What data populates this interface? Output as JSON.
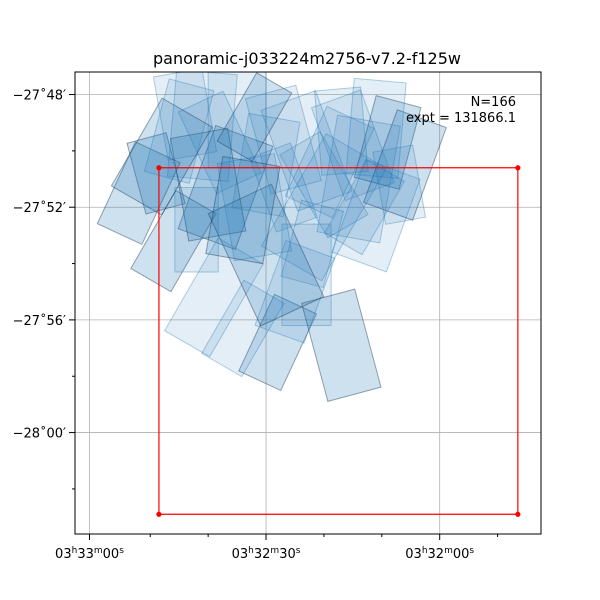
{
  "chart_data": {
    "type": "footprint",
    "title": "panoramic-j033224m2756-v7.2-f125w",
    "annotation_lines": [
      "N=166",
      "expt = 131866.1"
    ],
    "grid": true,
    "x_ticks": [
      {
        "value": -0.5,
        "h": "03",
        "m": "33",
        "s": "00"
      },
      {
        "value": 30,
        "h": "03",
        "m": "32",
        "s": "30"
      },
      {
        "value": 60,
        "h": "03",
        "m": "32",
        "s": "00"
      }
    ],
    "x_minor_ticks": [
      10,
      20,
      40,
      50,
      70
    ],
    "xlim": [
      -3,
      77.5
    ],
    "y_ticks": [
      {
        "value": -48,
        "label": "−27˚48′"
      },
      {
        "value": -52,
        "label": "−27˚52′"
      },
      {
        "value": -56,
        "label": "−27˚56′"
      },
      {
        "value": -60,
        "label": "−28˚00′"
      }
    ],
    "y_minor_ticks": [
      -50,
      -54,
      -58,
      -62
    ],
    "ylim": [
      -63.6,
      -47.2
    ],
    "region_box": {
      "corners": [
        [
          11.5,
          -50.6
        ],
        [
          73.5,
          -50.6
        ],
        [
          73.5,
          -62.9
        ],
        [
          11.5,
          -62.9
        ]
      ],
      "color": "#ff0000"
    },
    "exposure_color": "#1f77b4",
    "exposures": [
      {
        "cx": 23,
        "cy": -51.3,
        "w": 10.5,
        "h": 3.9,
        "rot": 20
      },
      {
        "cx": 33,
        "cy": -49.6,
        "w": 9,
        "h": 3.5,
        "rot": -15
      },
      {
        "cx": 41,
        "cy": -50.4,
        "w": 9,
        "h": 3.5,
        "rot": 25
      },
      {
        "cx": 14,
        "cy": -53.2,
        "w": 8,
        "h": 3.2,
        "rot": 30
      },
      {
        "cx": 19,
        "cy": -49.1,
        "w": 10.5,
        "h": 3.8,
        "rot": 5
      },
      {
        "cx": 45,
        "cy": -49.8,
        "w": 9,
        "h": 3.5,
        "rot": -20
      },
      {
        "cx": 51,
        "cy": -49.7,
        "w": 8,
        "h": 3.0,
        "rot": 15
      },
      {
        "cx": 21,
        "cy": -55.2,
        "w": 9,
        "h": 3.8,
        "rot": 30
      },
      {
        "cx": 28,
        "cy": -52.0,
        "w": 10,
        "h": 3.5,
        "rot": -10
      },
      {
        "cx": 32,
        "cy": -56.8,
        "w": 8,
        "h": 3.0,
        "rot": 25
      },
      {
        "cx": 37,
        "cy": -54.4,
        "w": 8.5,
        "h": 3.6,
        "rot": 0
      },
      {
        "cx": 49,
        "cy": -52.3,
        "w": 10,
        "h": 3.5,
        "rot": 20
      },
      {
        "cx": 11,
        "cy": -50.8,
        "w": 7,
        "h": 2.6,
        "rot": -15
      },
      {
        "cx": 25,
        "cy": -48.9,
        "w": 10,
        "h": 3.4,
        "rot": 0
      },
      {
        "cx": 16,
        "cy": -48.7,
        "w": 8.5,
        "h": 3.0,
        "rot": -10
      },
      {
        "cx": 43,
        "cy": -56.9,
        "w": 9.5,
        "h": 3.6,
        "rot": -15
      },
      {
        "cx": 40,
        "cy": -52.0,
        "w": 12,
        "h": 4.6,
        "rot": 30
      },
      {
        "cx": 26,
        "cy": -56.3,
        "w": 8,
        "h": 3.0,
        "rot": 30
      },
      {
        "cx": 54,
        "cy": -50.5,
        "w": 9,
        "h": 3.5,
        "rot": 20
      },
      {
        "cx": 37,
        "cy": -50.0,
        "w": 10,
        "h": 3.8,
        "rot": -20
      },
      {
        "cx": 30,
        "cy": -50.5,
        "w": 9,
        "h": 3.4,
        "rot": 10
      },
      {
        "cx": 20,
        "cy": -51.2,
        "w": 10,
        "h": 3.7,
        "rot": -10
      },
      {
        "cx": 46,
        "cy": -51.0,
        "w": 11,
        "h": 4.2,
        "rot": 10
      },
      {
        "cx": 53,
        "cy": -51.2,
        "w": 7,
        "h": 2.6,
        "rot": -10
      },
      {
        "cx": 8,
        "cy": -51.5,
        "w": 8.5,
        "h": 3.2,
        "rot": 25
      },
      {
        "cx": 35,
        "cy": -55.0,
        "w": 9,
        "h": 3.2,
        "rot": 20
      },
      {
        "cx": 15,
        "cy": -49.3,
        "w": 8,
        "h": 3.4,
        "rot": 15
      },
      {
        "cx": 28,
        "cy": -48.8,
        "w": 7,
        "h": 2.8,
        "rot": 30
      },
      {
        "cx": 18,
        "cy": -52.8,
        "w": 7.5,
        "h": 3.0,
        "rot": 0
      },
      {
        "cx": 40,
        "cy": -51.2,
        "w": 8,
        "h": 3.4,
        "rot": -30
      },
      {
        "cx": 30,
        "cy": -53.7,
        "w": 12,
        "h": 4.4,
        "rot": -25
      },
      {
        "cx": 22,
        "cy": -49.7,
        "w": 8.5,
        "h": 3.2,
        "rot": -25
      },
      {
        "cx": 47,
        "cy": -52.0,
        "w": 7.5,
        "h": 3.0,
        "rot": 30
      },
      {
        "cx": 12,
        "cy": -50.2,
        "w": 10,
        "h": 3.6,
        "rot": 30
      },
      {
        "cx": 33,
        "cy": -51.3,
        "w": 7.5,
        "h": 2.8,
        "rot": -20
      },
      {
        "cx": 38,
        "cy": -53.3,
        "w": 7.5,
        "h": 2.8,
        "rot": 15
      },
      {
        "cx": 26,
        "cy": -52.1,
        "w": 10,
        "h": 3.5,
        "rot": 10
      },
      {
        "cx": 43,
        "cy": -49.3,
        "w": 8,
        "h": 3.0,
        "rot": -5
      },
      {
        "cx": 49,
        "cy": -49.2,
        "w": 9,
        "h": 3.4,
        "rot": 5
      }
    ]
  }
}
